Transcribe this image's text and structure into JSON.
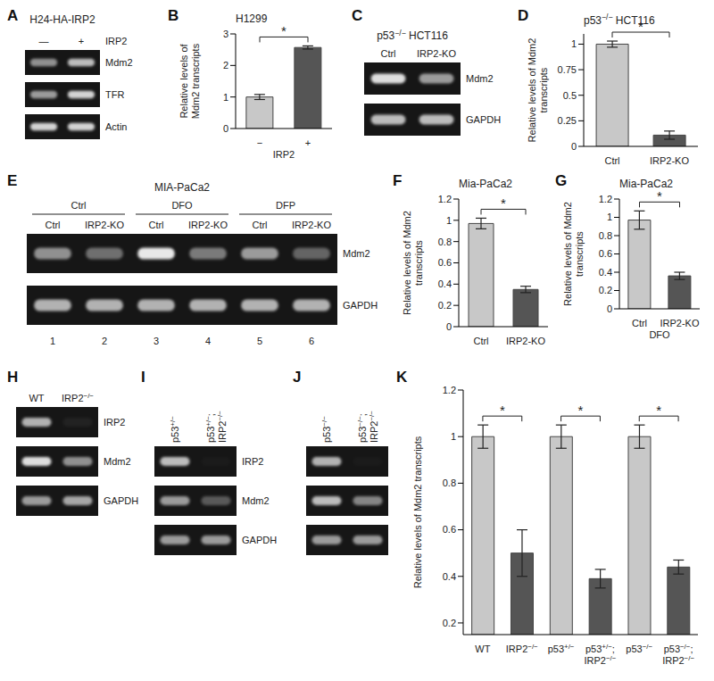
{
  "chart_data": [
    {
      "panel": "B",
      "type": "bar",
      "title": "H1299",
      "y_label": "Relative levels of Mdm2 transcripts",
      "x_label": "IRP2",
      "categories": [
        "−",
        "+"
      ],
      "values": [
        1,
        2.57
      ],
      "errors": [
        0.08,
        0.05
      ],
      "colors": [
        "#c8c8c8",
        "#555555"
      ],
      "ylim": [
        0,
        3
      ],
      "yticks": [
        0,
        1,
        2,
        3
      ],
      "significance": [
        {
          "from": 0,
          "to": 1,
          "label": "*"
        }
      ]
    },
    {
      "panel": "D",
      "type": "bar",
      "title": "p53−/− HCT116",
      "y_label": "Relative levels of Mdm2 transcripts",
      "categories": [
        "Ctrl",
        "IRP2-KO"
      ],
      "values": [
        1,
        0.11
      ],
      "errors": [
        0.03,
        0.04
      ],
      "colors": [
        "#c8c8c8",
        "#555555"
      ],
      "ylim": [
        0,
        1.1
      ],
      "yticks": [
        0,
        0.25,
        0.5,
        0.75,
        1
      ],
      "significance": [
        {
          "from": 0,
          "to": 1,
          "label": "*"
        }
      ]
    },
    {
      "panel": "F",
      "type": "bar",
      "title": "Mia-PaCa2",
      "y_label": "Relative levels of Mdm2 transcripts",
      "categories": [
        "Ctrl",
        "IRP2-KO"
      ],
      "values": [
        0.97,
        0.35
      ],
      "errors": [
        0.05,
        0.03
      ],
      "colors": [
        "#c8c8c8",
        "#555555"
      ],
      "ylim": [
        0,
        1.2
      ],
      "yticks": [
        0,
        0.2,
        0.4,
        0.6,
        0.8,
        1,
        1.2
      ],
      "significance": [
        {
          "from": 0,
          "to": 1,
          "label": "*"
        }
      ]
    },
    {
      "panel": "G",
      "type": "bar",
      "title": "Mia-PaCa2",
      "y_label": "Relative levels of Mdm2 transcripts",
      "x_label": "DFO",
      "categories": [
        "Ctrl",
        "IRP2-KO"
      ],
      "values": [
        0.97,
        0.36
      ],
      "errors": [
        0.1,
        0.04
      ],
      "colors": [
        "#c8c8c8",
        "#555555"
      ],
      "ylim": [
        0,
        1.2
      ],
      "yticks": [
        0,
        0.2,
        0.4,
        0.6,
        0.8,
        1,
        1.2
      ],
      "significance": [
        {
          "from": 0,
          "to": 1,
          "label": "*"
        }
      ]
    },
    {
      "panel": "K",
      "type": "bar",
      "y_label": "Relative levels of Mdm2 transcripts",
      "categories": [
        "WT",
        "IRP2−/−",
        "p53+/−",
        "p53+/−; IRP2−/−",
        "p53−/−",
        "p53−/−; IRP2−/−"
      ],
      "values": [
        1,
        0.5,
        1,
        0.39,
        1,
        0.44
      ],
      "errors": [
        0.05,
        0.1,
        0.05,
        0.04,
        0.05,
        0.03
      ],
      "colors": [
        "#c8c8c8",
        "#555555",
        "#c8c8c8",
        "#555555",
        "#c8c8c8",
        "#555555"
      ],
      "ylim": [
        0.15,
        1.2
      ],
      "yticks": [
        0.2,
        0.4,
        0.6,
        0.8,
        1,
        1.2
      ],
      "significance": [
        {
          "from": 0,
          "to": 1,
          "label": "*"
        },
        {
          "from": 2,
          "to": 3,
          "label": "*"
        },
        {
          "from": 4,
          "to": 5,
          "label": "*"
        }
      ]
    }
  ],
  "gels": [
    {
      "panel": "A",
      "title": "H24-HA-IRP2",
      "lane_label": "IRP2",
      "lanes": [
        "—",
        "+"
      ],
      "rows": [
        {
          "label": "Mdm2",
          "intensity": [
            0.55,
            0.75
          ]
        },
        {
          "label": "TFR",
          "intensity": [
            0.6,
            0.85
          ]
        },
        {
          "label": "Actin",
          "intensity": [
            0.85,
            0.85
          ]
        }
      ]
    },
    {
      "panel": "C",
      "title": "p53−/− HCT116",
      "lanes": [
        "Ctrl",
        "IRP2-KO"
      ],
      "rows": [
        {
          "label": "Mdm2",
          "intensity": [
            0.9,
            0.6
          ]
        },
        {
          "label": "GAPDH",
          "intensity": [
            0.75,
            0.75
          ]
        }
      ]
    },
    {
      "panel": "E",
      "title": "MIA-PaCa2",
      "groups": [
        "Ctrl",
        "DFO",
        "DFP"
      ],
      "lanes": [
        "Ctrl",
        "IRP2-KO",
        "Ctrl",
        "IRP2-KO",
        "Ctrl",
        "IRP2-KO"
      ],
      "lane_numbers": [
        1,
        2,
        3,
        4,
        5,
        6
      ],
      "rows": [
        {
          "label": "Mdm2",
          "intensity": [
            0.55,
            0.4,
            0.95,
            0.45,
            0.6,
            0.35
          ]
        },
        {
          "label": "GAPDH",
          "intensity": [
            0.7,
            0.7,
            0.7,
            0.7,
            0.7,
            0.7
          ]
        }
      ]
    },
    {
      "panel": "H",
      "lanes": [
        "WT",
        "IRP2−/−"
      ],
      "rows": [
        {
          "label": "IRP2",
          "intensity": [
            0.7,
            0.05
          ]
        },
        {
          "label": "Mdm2",
          "intensity": [
            0.9,
            0.55
          ]
        },
        {
          "label": "GAPDH",
          "intensity": [
            0.6,
            0.65
          ]
        }
      ]
    },
    {
      "panel": "I",
      "lanes": [
        "p53+/−",
        "p53+/−; IRP2−/−"
      ],
      "rows": [
        {
          "label": "IRP2",
          "intensity": [
            0.75,
            0.02
          ]
        },
        {
          "label": "Mdm2",
          "intensity": [
            0.6,
            0.3
          ]
        },
        {
          "label": "GAPDH",
          "intensity": [
            0.6,
            0.6
          ]
        }
      ]
    },
    {
      "panel": "J",
      "lanes": [
        "p53−/−",
        "p53−/−; IRP2−/−"
      ],
      "rows": [
        {
          "intensity": [
            0.7,
            0.02
          ]
        },
        {
          "intensity": [
            0.75,
            0.5
          ]
        },
        {
          "intensity": [
            0.6,
            0.6
          ]
        }
      ]
    }
  ]
}
